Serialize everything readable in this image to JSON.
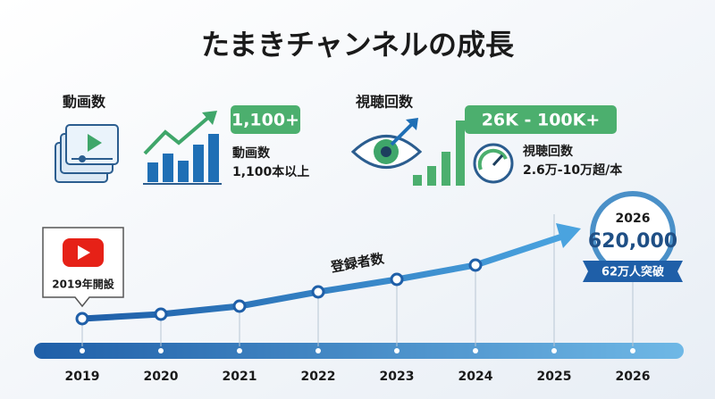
{
  "title": "たまきチャンネルの成長",
  "videos": {
    "heading": "動画数",
    "badge": "1,100+",
    "label": "動画数",
    "detail": "1,100本以上"
  },
  "views": {
    "heading": "視聴回数",
    "badge": "26K - 100K+",
    "label": "視聴回数",
    "detail": "2.6万-10万超/本"
  },
  "timeline": {
    "start_label": "2019年開設",
    "line_label": "登録者数",
    "years": [
      "2019",
      "2020",
      "2021",
      "2022",
      "2023",
      "2024",
      "2025",
      "2026"
    ],
    "goal": {
      "year": "2026",
      "value": "620,000",
      "ribbon": "62万人突破"
    }
  }
}
